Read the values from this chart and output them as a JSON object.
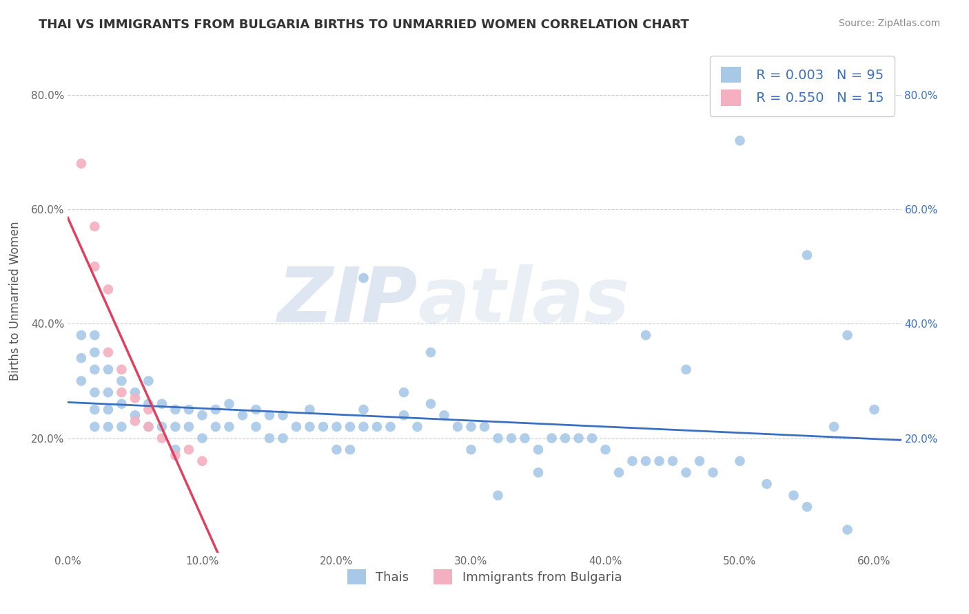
{
  "title": "THAI VS IMMIGRANTS FROM BULGARIA BIRTHS TO UNMARRIED WOMEN CORRELATION CHART",
  "source": "Source: ZipAtlas.com",
  "ylabel": "Births to Unmarried Women",
  "legend_label_1": "Thais",
  "legend_label_2": "Immigrants from Bulgaria",
  "R1": "0.003",
  "N1": "95",
  "R2": "0.550",
  "N2": "15",
  "color_thai": "#a8c8e8",
  "color_bulgaria": "#f4b0c0",
  "line_color_thai": "#3a70c0",
  "line_color_bulgaria": "#e04060",
  "xlim": [
    0.0,
    0.62
  ],
  "ylim": [
    0.0,
    0.88
  ],
  "xticks": [
    0.0,
    0.1,
    0.2,
    0.3,
    0.4,
    0.5,
    0.6
  ],
  "xtick_labels": [
    "0.0%",
    "10.0%",
    "20.0%",
    "30.0%",
    "40.0%",
    "50.0%",
    "60.0%"
  ],
  "yticks": [
    0.0,
    0.2,
    0.4,
    0.6,
    0.8
  ],
  "ytick_labels_left": [
    "",
    "20.0%",
    "40.0%",
    "60.0%",
    "80.0%"
  ],
  "ytick_labels_right": [
    "",
    "20.0%",
    "40.0%",
    "60.0%",
    "80.0%"
  ],
  "thai_x": [
    0.01,
    0.01,
    0.01,
    0.02,
    0.02,
    0.02,
    0.02,
    0.02,
    0.02,
    0.03,
    0.03,
    0.03,
    0.03,
    0.04,
    0.04,
    0.04,
    0.05,
    0.05,
    0.06,
    0.06,
    0.06,
    0.07,
    0.07,
    0.08,
    0.08,
    0.08,
    0.09,
    0.09,
    0.1,
    0.1,
    0.11,
    0.11,
    0.12,
    0.12,
    0.13,
    0.14,
    0.14,
    0.15,
    0.15,
    0.16,
    0.16,
    0.17,
    0.18,
    0.18,
    0.19,
    0.2,
    0.2,
    0.21,
    0.21,
    0.22,
    0.22,
    0.23,
    0.24,
    0.25,
    0.25,
    0.26,
    0.27,
    0.28,
    0.29,
    0.3,
    0.3,
    0.31,
    0.32,
    0.33,
    0.34,
    0.35,
    0.35,
    0.36,
    0.37,
    0.38,
    0.39,
    0.4,
    0.41,
    0.42,
    0.43,
    0.44,
    0.45,
    0.46,
    0.47,
    0.48,
    0.5,
    0.52,
    0.54,
    0.55,
    0.57,
    0.43,
    0.5,
    0.27,
    0.55,
    0.22,
    0.46,
    0.32,
    0.58,
    0.6,
    0.58
  ],
  "thai_y": [
    0.38,
    0.34,
    0.3,
    0.38,
    0.35,
    0.32,
    0.28,
    0.25,
    0.22,
    0.32,
    0.28,
    0.25,
    0.22,
    0.3,
    0.26,
    0.22,
    0.28,
    0.24,
    0.3,
    0.26,
    0.22,
    0.26,
    0.22,
    0.25,
    0.22,
    0.18,
    0.25,
    0.22,
    0.24,
    0.2,
    0.25,
    0.22,
    0.26,
    0.22,
    0.24,
    0.25,
    0.22,
    0.24,
    0.2,
    0.24,
    0.2,
    0.22,
    0.25,
    0.22,
    0.22,
    0.22,
    0.18,
    0.22,
    0.18,
    0.25,
    0.22,
    0.22,
    0.22,
    0.28,
    0.24,
    0.22,
    0.26,
    0.24,
    0.22,
    0.22,
    0.18,
    0.22,
    0.2,
    0.2,
    0.2,
    0.18,
    0.14,
    0.2,
    0.2,
    0.2,
    0.2,
    0.18,
    0.14,
    0.16,
    0.16,
    0.16,
    0.16,
    0.14,
    0.16,
    0.14,
    0.16,
    0.12,
    0.1,
    0.08,
    0.22,
    0.38,
    0.72,
    0.35,
    0.52,
    0.48,
    0.32,
    0.1,
    0.04,
    0.25,
    0.38
  ],
  "bulgaria_x": [
    0.01,
    0.02,
    0.02,
    0.03,
    0.03,
    0.04,
    0.04,
    0.05,
    0.05,
    0.06,
    0.06,
    0.07,
    0.08,
    0.09,
    0.1
  ],
  "bulgaria_y": [
    0.68,
    0.57,
    0.5,
    0.46,
    0.35,
    0.32,
    0.28,
    0.27,
    0.23,
    0.25,
    0.22,
    0.2,
    0.17,
    0.18,
    0.16
  ],
  "watermark_zip": "ZIP",
  "watermark_atlas": "atlas",
  "background_color": "#ffffff",
  "grid_color": "#cccccc",
  "grid_style": "--"
}
